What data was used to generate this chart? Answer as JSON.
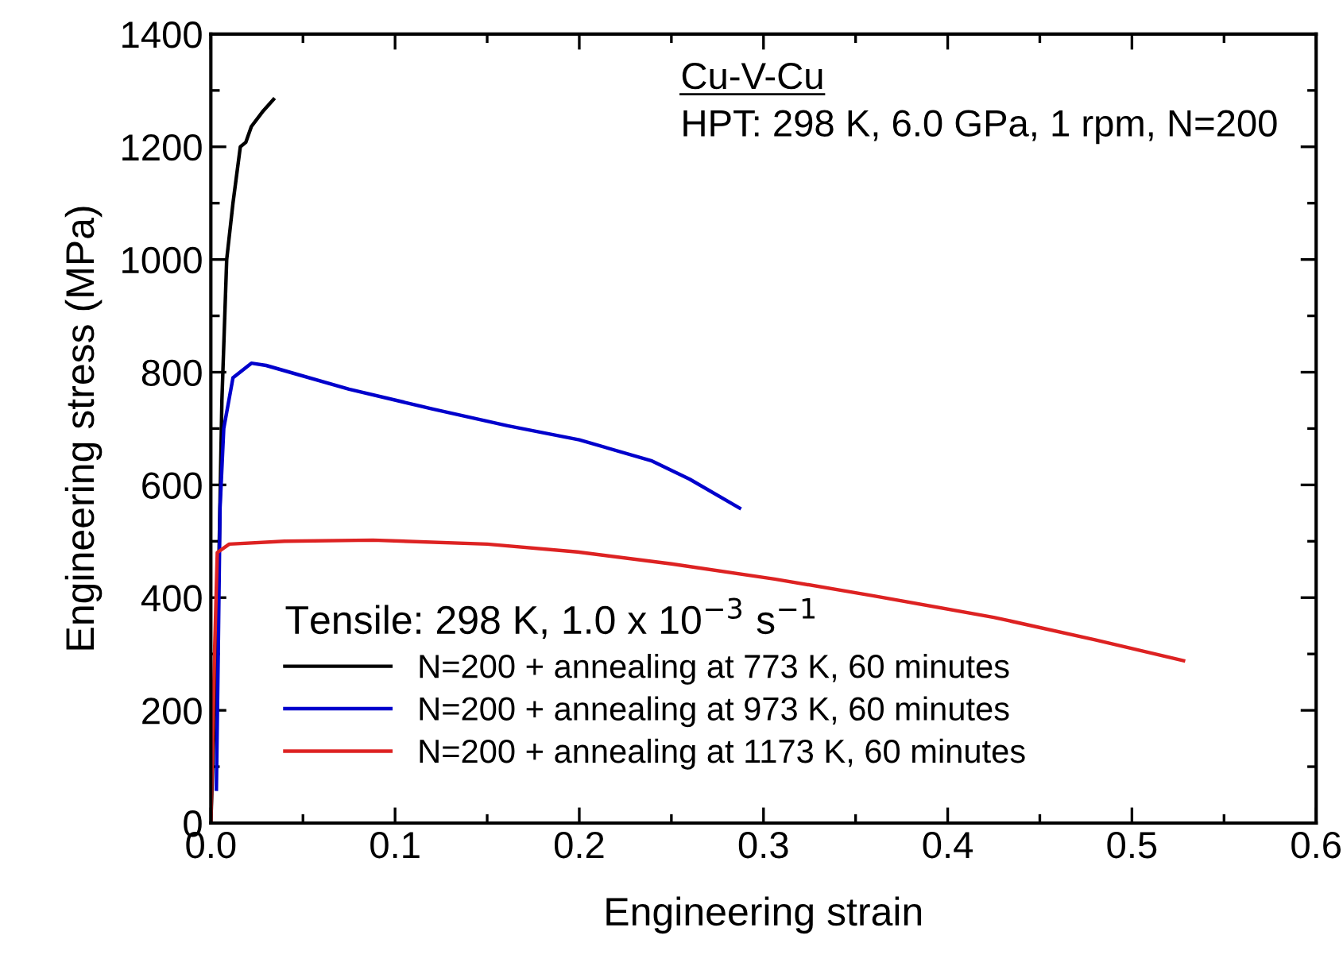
{
  "chart_data": {
    "type": "line",
    "xlabel": "Engineering strain",
    "ylabel": "Engineering stress (MPa)",
    "xlim": [
      0,
      0.6
    ],
    "xticks": [
      {
        "value": 0,
        "label": "0.0"
      },
      0.1,
      0.2,
      0.3,
      0.4,
      0.5,
      0.6
    ],
    "ylim": [
      0,
      1400
    ],
    "yticks": [
      0,
      200,
      400,
      600,
      800,
      1000,
      1200,
      1400
    ],
    "annotations": [
      "Cu-V-Cu",
      "HPT: 298 K, 6.0 GPa, 1 rpm, N=200"
    ],
    "legend_title": "Tensile: 298 K, 1.0 x 10$^{−3}$ s$^{−1}$",
    "legend": "bottom left",
    "grid": false,
    "marker": "none",
    "line_style": "solid",
    "series": [
      {
        "name": "N=200 + annealing at 773 K, 60 minutes",
        "color": "#000000",
        "x": [
          0,
          0.004,
          0.006,
          0.0086,
          0.012,
          0.016,
          0.019,
          0.022,
          0.028,
          0.034
        ],
        "values": [
          0,
          400,
          750,
          1000,
          1100,
          1200,
          1208,
          1236,
          1262,
          1284
        ]
      },
      {
        "name": "N=200 + annealing at 973 K, 60 minutes",
        "color": "#0000cc",
        "x": [
          0.003,
          0.004,
          0.005,
          0.007,
          0.012,
          0.022,
          0.03,
          0.075,
          0.12,
          0.161,
          0.2,
          0.239,
          0.26,
          0.287
        ],
        "values": [
          60,
          300,
          560,
          700,
          790,
          816,
          812,
          770,
          735,
          705,
          680,
          643,
          610,
          559
        ]
      },
      {
        "name": "N=200 + annealing at 1173 K, 60 minutes",
        "color": "#dd2222",
        "x": [
          0,
          0.002,
          0.0035,
          0.01,
          0.04,
          0.088,
          0.15,
          0.199,
          0.25,
          0.306,
          0.36,
          0.425,
          0.48,
          0.528
        ],
        "values": [
          0,
          300,
          480,
          495,
          500,
          502,
          495,
          481,
          460,
          433,
          403,
          365,
          325,
          288
        ]
      }
    ]
  }
}
